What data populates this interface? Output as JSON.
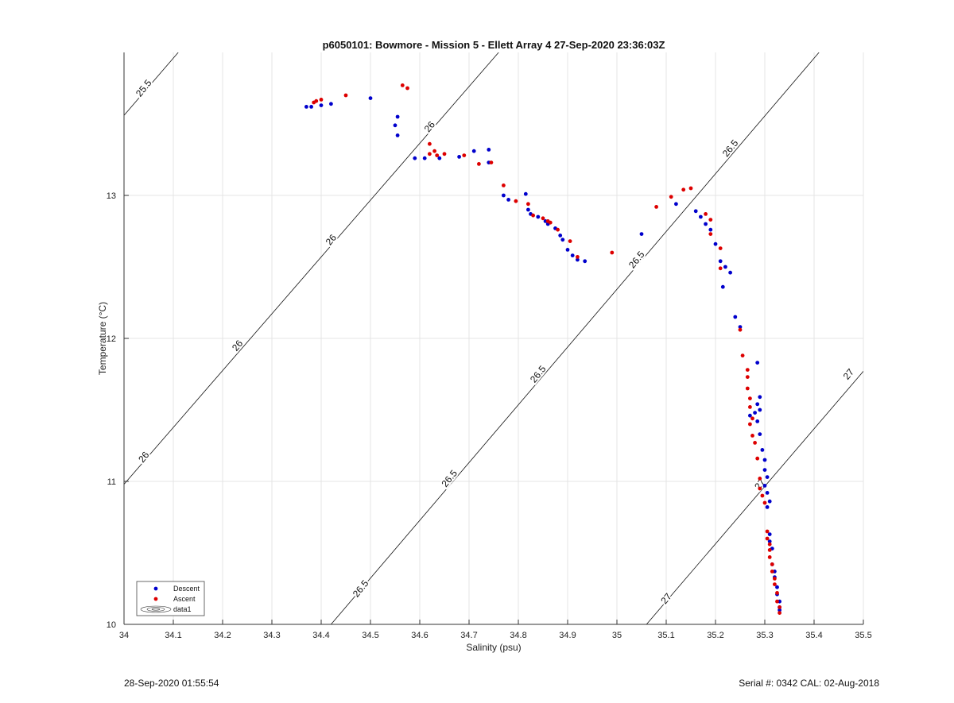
{
  "chart_data": {
    "type": "scatter",
    "title": "p6050101: Bowmore - Mission 5 - Ellett Array 4 27-Sep-2020 23:36:03Z",
    "xlabel": "Salinity (psu)",
    "ylabel": "Temperature (°C)",
    "xlim": [
      34,
      35.5
    ],
    "ylim": [
      10,
      14
    ],
    "xticks": [
      "34",
      "34.1",
      "34.2",
      "34.3",
      "34.4",
      "34.5",
      "34.6",
      "34.7",
      "34.8",
      "34.9",
      "35",
      "35.1",
      "35.2",
      "35.3",
      "35.4",
      "35.5"
    ],
    "yticks": [
      "10",
      "11",
      "12",
      "13"
    ],
    "grid": true,
    "legend": {
      "position": "bottom-left",
      "entries": [
        "Descent",
        "Ascent",
        "data1"
      ]
    },
    "contours": [
      {
        "sigma": 25.5,
        "label": "25.5",
        "points": [
          [
            34.0,
            13.56
          ],
          [
            34.11,
            14.0
          ]
        ]
      },
      {
        "sigma": 26,
        "label": "26",
        "points": [
          [
            34.0,
            10.98
          ],
          [
            34.76,
            14.0
          ]
        ]
      },
      {
        "sigma": 26.5,
        "label": "26.5",
        "points": [
          [
            34.42,
            10.0
          ],
          [
            35.41,
            14.0
          ]
        ]
      },
      {
        "sigma": 27,
        "label": "27",
        "points": [
          [
            35.06,
            10.0
          ],
          [
            35.5,
            11.77
          ]
        ]
      }
    ],
    "contour_labels": [
      {
        "label": "25.5",
        "at": [
          34.04,
          13.75
        ]
      },
      {
        "label": "26",
        "at": [
          34.04,
          11.17
        ]
      },
      {
        "label": "26",
        "at": [
          34.23,
          11.95
        ]
      },
      {
        "label": "26",
        "at": [
          34.42,
          12.69
        ]
      },
      {
        "label": "26",
        "at": [
          34.62,
          13.48
        ]
      },
      {
        "label": "26.5",
        "at": [
          34.48,
          10.25
        ]
      },
      {
        "label": "26.5",
        "at": [
          34.66,
          11.02
        ]
      },
      {
        "label": "26.5",
        "at": [
          34.84,
          11.75
        ]
      },
      {
        "label": "26.5",
        "at": [
          35.04,
          12.55
        ]
      },
      {
        "label": "26.5",
        "at": [
          35.23,
          13.33
        ]
      },
      {
        "label": "27",
        "at": [
          35.1,
          10.18
        ]
      },
      {
        "label": "27",
        "at": [
          35.29,
          10.98
        ]
      },
      {
        "label": "27",
        "at": [
          35.47,
          11.75
        ]
      }
    ],
    "series": [
      {
        "name": "Descent",
        "color": "#0000cc",
        "points": [
          [
            34.37,
            13.62
          ],
          [
            34.38,
            13.62
          ],
          [
            34.4,
            13.63
          ],
          [
            34.42,
            13.64
          ],
          [
            34.5,
            13.68
          ],
          [
            34.55,
            13.49
          ],
          [
            34.555,
            13.55
          ],
          [
            34.555,
            13.42
          ],
          [
            34.59,
            13.26
          ],
          [
            34.61,
            13.26
          ],
          [
            34.64,
            13.26
          ],
          [
            34.68,
            13.27
          ],
          [
            34.71,
            13.31
          ],
          [
            34.74,
            13.32
          ],
          [
            34.74,
            13.23
          ],
          [
            34.77,
            13.0
          ],
          [
            34.78,
            12.97
          ],
          [
            34.815,
            13.01
          ],
          [
            34.82,
            12.9
          ],
          [
            34.825,
            12.87
          ],
          [
            34.84,
            12.85
          ],
          [
            34.855,
            12.82
          ],
          [
            34.86,
            12.8
          ],
          [
            34.875,
            12.77
          ],
          [
            34.885,
            12.72
          ],
          [
            34.89,
            12.69
          ],
          [
            34.9,
            12.62
          ],
          [
            34.91,
            12.58
          ],
          [
            34.92,
            12.55
          ],
          [
            34.935,
            12.54
          ],
          [
            35.05,
            12.73
          ],
          [
            35.12,
            12.94
          ],
          [
            35.16,
            12.89
          ],
          [
            35.17,
            12.85
          ],
          [
            35.18,
            12.8
          ],
          [
            35.19,
            12.76
          ],
          [
            35.2,
            12.66
          ],
          [
            35.21,
            12.54
          ],
          [
            35.22,
            12.5
          ],
          [
            35.23,
            12.46
          ],
          [
            35.215,
            12.36
          ],
          [
            35.24,
            12.15
          ],
          [
            35.25,
            12.08
          ],
          [
            35.285,
            11.83
          ],
          [
            35.29,
            11.59
          ],
          [
            35.285,
            11.54
          ],
          [
            35.29,
            11.5
          ],
          [
            35.28,
            11.48
          ],
          [
            35.27,
            11.46
          ],
          [
            35.285,
            11.42
          ],
          [
            35.29,
            11.33
          ],
          [
            35.295,
            11.22
          ],
          [
            35.3,
            11.15
          ],
          [
            35.3,
            11.08
          ],
          [
            35.305,
            11.03
          ],
          [
            35.3,
            10.97
          ],
          [
            35.305,
            10.92
          ],
          [
            35.31,
            10.86
          ],
          [
            35.305,
            10.82
          ],
          [
            35.31,
            10.63
          ],
          [
            35.31,
            10.58
          ],
          [
            35.315,
            10.53
          ],
          [
            35.315,
            10.42
          ],
          [
            35.32,
            10.37
          ],
          [
            35.32,
            10.33
          ],
          [
            35.325,
            10.26
          ],
          [
            35.325,
            10.21
          ],
          [
            35.33,
            10.16
          ],
          [
            35.33,
            10.12
          ],
          [
            35.33,
            10.1
          ]
        ]
      },
      {
        "name": "Ascent",
        "color": "#dd0000",
        "points": [
          [
            34.385,
            13.65
          ],
          [
            34.39,
            13.66
          ],
          [
            34.4,
            13.67
          ],
          [
            34.45,
            13.7
          ],
          [
            34.565,
            13.77
          ],
          [
            34.575,
            13.75
          ],
          [
            34.62,
            13.36
          ],
          [
            34.62,
            13.29
          ],
          [
            34.63,
            13.31
          ],
          [
            34.635,
            13.28
          ],
          [
            34.65,
            13.29
          ],
          [
            34.69,
            13.28
          ],
          [
            34.72,
            13.22
          ],
          [
            34.745,
            13.23
          ],
          [
            34.77,
            13.07
          ],
          [
            34.795,
            12.96
          ],
          [
            34.82,
            12.94
          ],
          [
            34.83,
            12.86
          ],
          [
            34.85,
            12.84
          ],
          [
            34.86,
            12.82
          ],
          [
            34.865,
            12.81
          ],
          [
            34.88,
            12.76
          ],
          [
            34.905,
            12.68
          ],
          [
            34.92,
            12.57
          ],
          [
            34.99,
            12.6
          ],
          [
            35.08,
            12.92
          ],
          [
            35.11,
            12.99
          ],
          [
            35.135,
            13.04
          ],
          [
            35.15,
            13.05
          ],
          [
            35.18,
            12.87
          ],
          [
            35.19,
            12.83
          ],
          [
            35.19,
            12.73
          ],
          [
            35.21,
            12.63
          ],
          [
            35.21,
            12.49
          ],
          [
            35.25,
            12.06
          ],
          [
            35.255,
            11.88
          ],
          [
            35.265,
            11.78
          ],
          [
            35.265,
            11.73
          ],
          [
            35.265,
            11.65
          ],
          [
            35.27,
            11.58
          ],
          [
            35.27,
            11.52
          ],
          [
            35.275,
            11.44
          ],
          [
            35.27,
            11.4
          ],
          [
            35.275,
            11.32
          ],
          [
            35.28,
            11.27
          ],
          [
            35.285,
            11.16
          ],
          [
            35.29,
            11.02
          ],
          [
            35.29,
            10.95
          ],
          [
            35.295,
            10.9
          ],
          [
            35.3,
            10.85
          ],
          [
            35.305,
            10.65
          ],
          [
            35.305,
            10.6
          ],
          [
            35.31,
            10.56
          ],
          [
            35.31,
            10.52
          ],
          [
            35.31,
            10.47
          ],
          [
            35.315,
            10.42
          ],
          [
            35.315,
            10.37
          ],
          [
            35.32,
            10.32
          ],
          [
            35.32,
            10.28
          ],
          [
            35.325,
            10.22
          ],
          [
            35.325,
            10.16
          ],
          [
            35.33,
            10.12
          ],
          [
            35.33,
            10.08
          ]
        ]
      }
    ]
  },
  "footer": {
    "timestamp": "28-Sep-2020 01:55:54",
    "serial": "Serial #: 0342  CAL: 02-Aug-2018"
  }
}
